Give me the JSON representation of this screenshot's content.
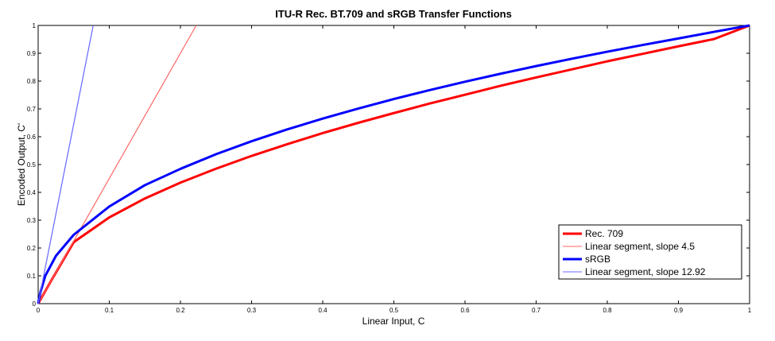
{
  "chart_data": {
    "type": "line",
    "title": "ITU-R Rec. BT.709 and sRGB Transfer Functions",
    "xlabel": "Linear Input, C",
    "ylabel": "Encoded Output, C'",
    "xlim": [
      0,
      1
    ],
    "ylim": [
      0,
      1
    ],
    "x_ticks": [
      "0",
      "0.1",
      "0.2",
      "0.3",
      "0.4",
      "0.5",
      "0.6",
      "0.7",
      "0.8",
      "0.9",
      "1"
    ],
    "y_ticks": [
      "0",
      "0.1",
      "0.2",
      "0.3",
      "0.4",
      "0.5",
      "0.6",
      "0.7",
      "0.8",
      "0.9",
      "1"
    ],
    "grid": false,
    "legend_position": "bottom-right",
    "series": [
      {
        "name": "Rec. 709",
        "color": "#ff0000",
        "style": "thick",
        "x": [
          0,
          0.018,
          0.05,
          0.1,
          0.15,
          0.2,
          0.25,
          0.3,
          0.35,
          0.4,
          0.45,
          0.5,
          0.55,
          0.6,
          0.65,
          0.7,
          0.75,
          0.8,
          0.85,
          0.9,
          0.95,
          1
        ],
        "values": [
          0,
          0.081,
          0.221,
          0.31,
          0.378,
          0.435,
          0.485,
          0.531,
          0.573,
          0.613,
          0.65,
          0.685,
          0.719,
          0.751,
          0.783,
          0.813,
          0.842,
          0.871,
          0.898,
          0.925,
          0.951,
          1
        ]
      },
      {
        "name": "Linear segment, slope 4.5",
        "color": "#ff6666",
        "style": "thin",
        "x": [
          0,
          0.2222
        ],
        "values": [
          0,
          1
        ]
      },
      {
        "name": "sRGB",
        "color": "#0000ff",
        "style": "thick",
        "x": [
          0,
          0.0031308,
          0.01,
          0.025,
          0.05,
          0.1,
          0.15,
          0.2,
          0.25,
          0.3,
          0.35,
          0.4,
          0.45,
          0.5,
          0.55,
          0.6,
          0.65,
          0.7,
          0.75,
          0.8,
          0.85,
          0.9,
          0.95,
          1
        ],
        "values": [
          0,
          0.0404,
          0.0998,
          0.1718,
          0.2475,
          0.3492,
          0.4259,
          0.4845,
          0.5371,
          0.5838,
          0.6262,
          0.6651,
          0.7012,
          0.7354,
          0.7674,
          0.7977,
          0.8264,
          0.8539,
          0.8802,
          0.9055,
          0.9298,
          0.9533,
          0.9769,
          1
        ]
      },
      {
        "name": "Linear segment, slope 12.92",
        "color": "#6666ff",
        "style": "thin",
        "x": [
          0,
          0.0774
        ],
        "values": [
          0,
          1
        ]
      }
    ]
  }
}
